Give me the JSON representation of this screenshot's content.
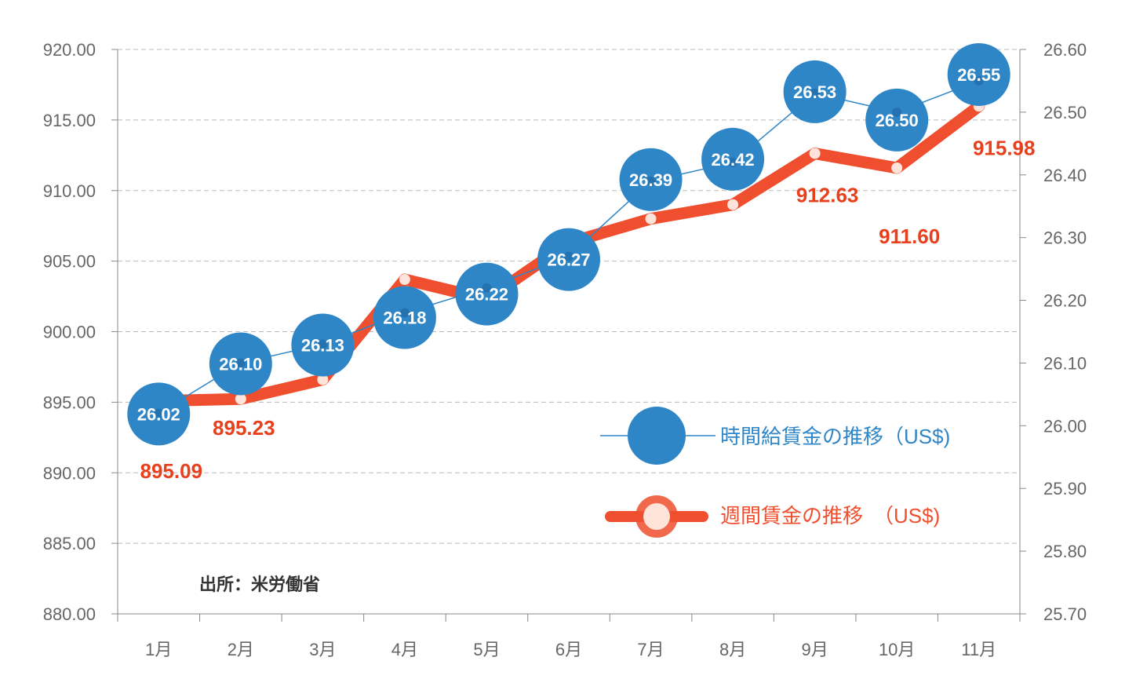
{
  "chart_data": {
    "type": "line",
    "categories": [
      "1月",
      "2月",
      "3月",
      "4月",
      "5月",
      "6月",
      "7月",
      "8月",
      "9月",
      "10月",
      "11月"
    ],
    "series": [
      {
        "name": "時間給賃金の推移（US$)",
        "axis": "right",
        "values": [
          26.02,
          26.1,
          26.13,
          26.18,
          26.22,
          26.27,
          26.39,
          26.42,
          26.53,
          26.5,
          26.55
        ],
        "labels": [
          "26.02",
          "26.10",
          "26.13",
          "26.18",
          "26.22",
          "26.27",
          "26.39",
          "26.42",
          "26.53",
          "26.50",
          "26.55"
        ],
        "color": "#2f86c7"
      },
      {
        "name": "週間賃金の推移　（US$)",
        "axis": "left",
        "values": [
          895.09,
          895.23,
          896.6,
          903.7,
          902.3,
          906.3,
          908.0,
          909.0,
          912.63,
          911.6,
          915.98
        ],
        "labels": [
          "895.09",
          "895.23",
          "",
          "",
          "",
          "",
          "",
          "",
          "912.63",
          "911.60",
          "915.98"
        ],
        "color": "#ef4f2e"
      }
    ],
    "y_left": {
      "ylim": [
        880,
        920
      ],
      "ticks": [
        "880.00",
        "885.00",
        "890.00",
        "895.00",
        "900.00",
        "905.00",
        "910.00",
        "915.00",
        "920.00"
      ]
    },
    "y_right": {
      "ylim": [
        25.7,
        26.6
      ],
      "ticks": [
        "25.70",
        "25.80",
        "25.90",
        "26.00",
        "26.10",
        "26.20",
        "26.30",
        "26.40",
        "26.50",
        "26.60"
      ]
    },
    "grid": true,
    "legend_position": "right-middle",
    "annotation": "出所：米労働省"
  },
  "colors": {
    "blue": "#2f86c7",
    "red": "#ef4f2e",
    "label_red": "#e8401c",
    "grid": "#bbbbbb",
    "axis": "#888888"
  }
}
